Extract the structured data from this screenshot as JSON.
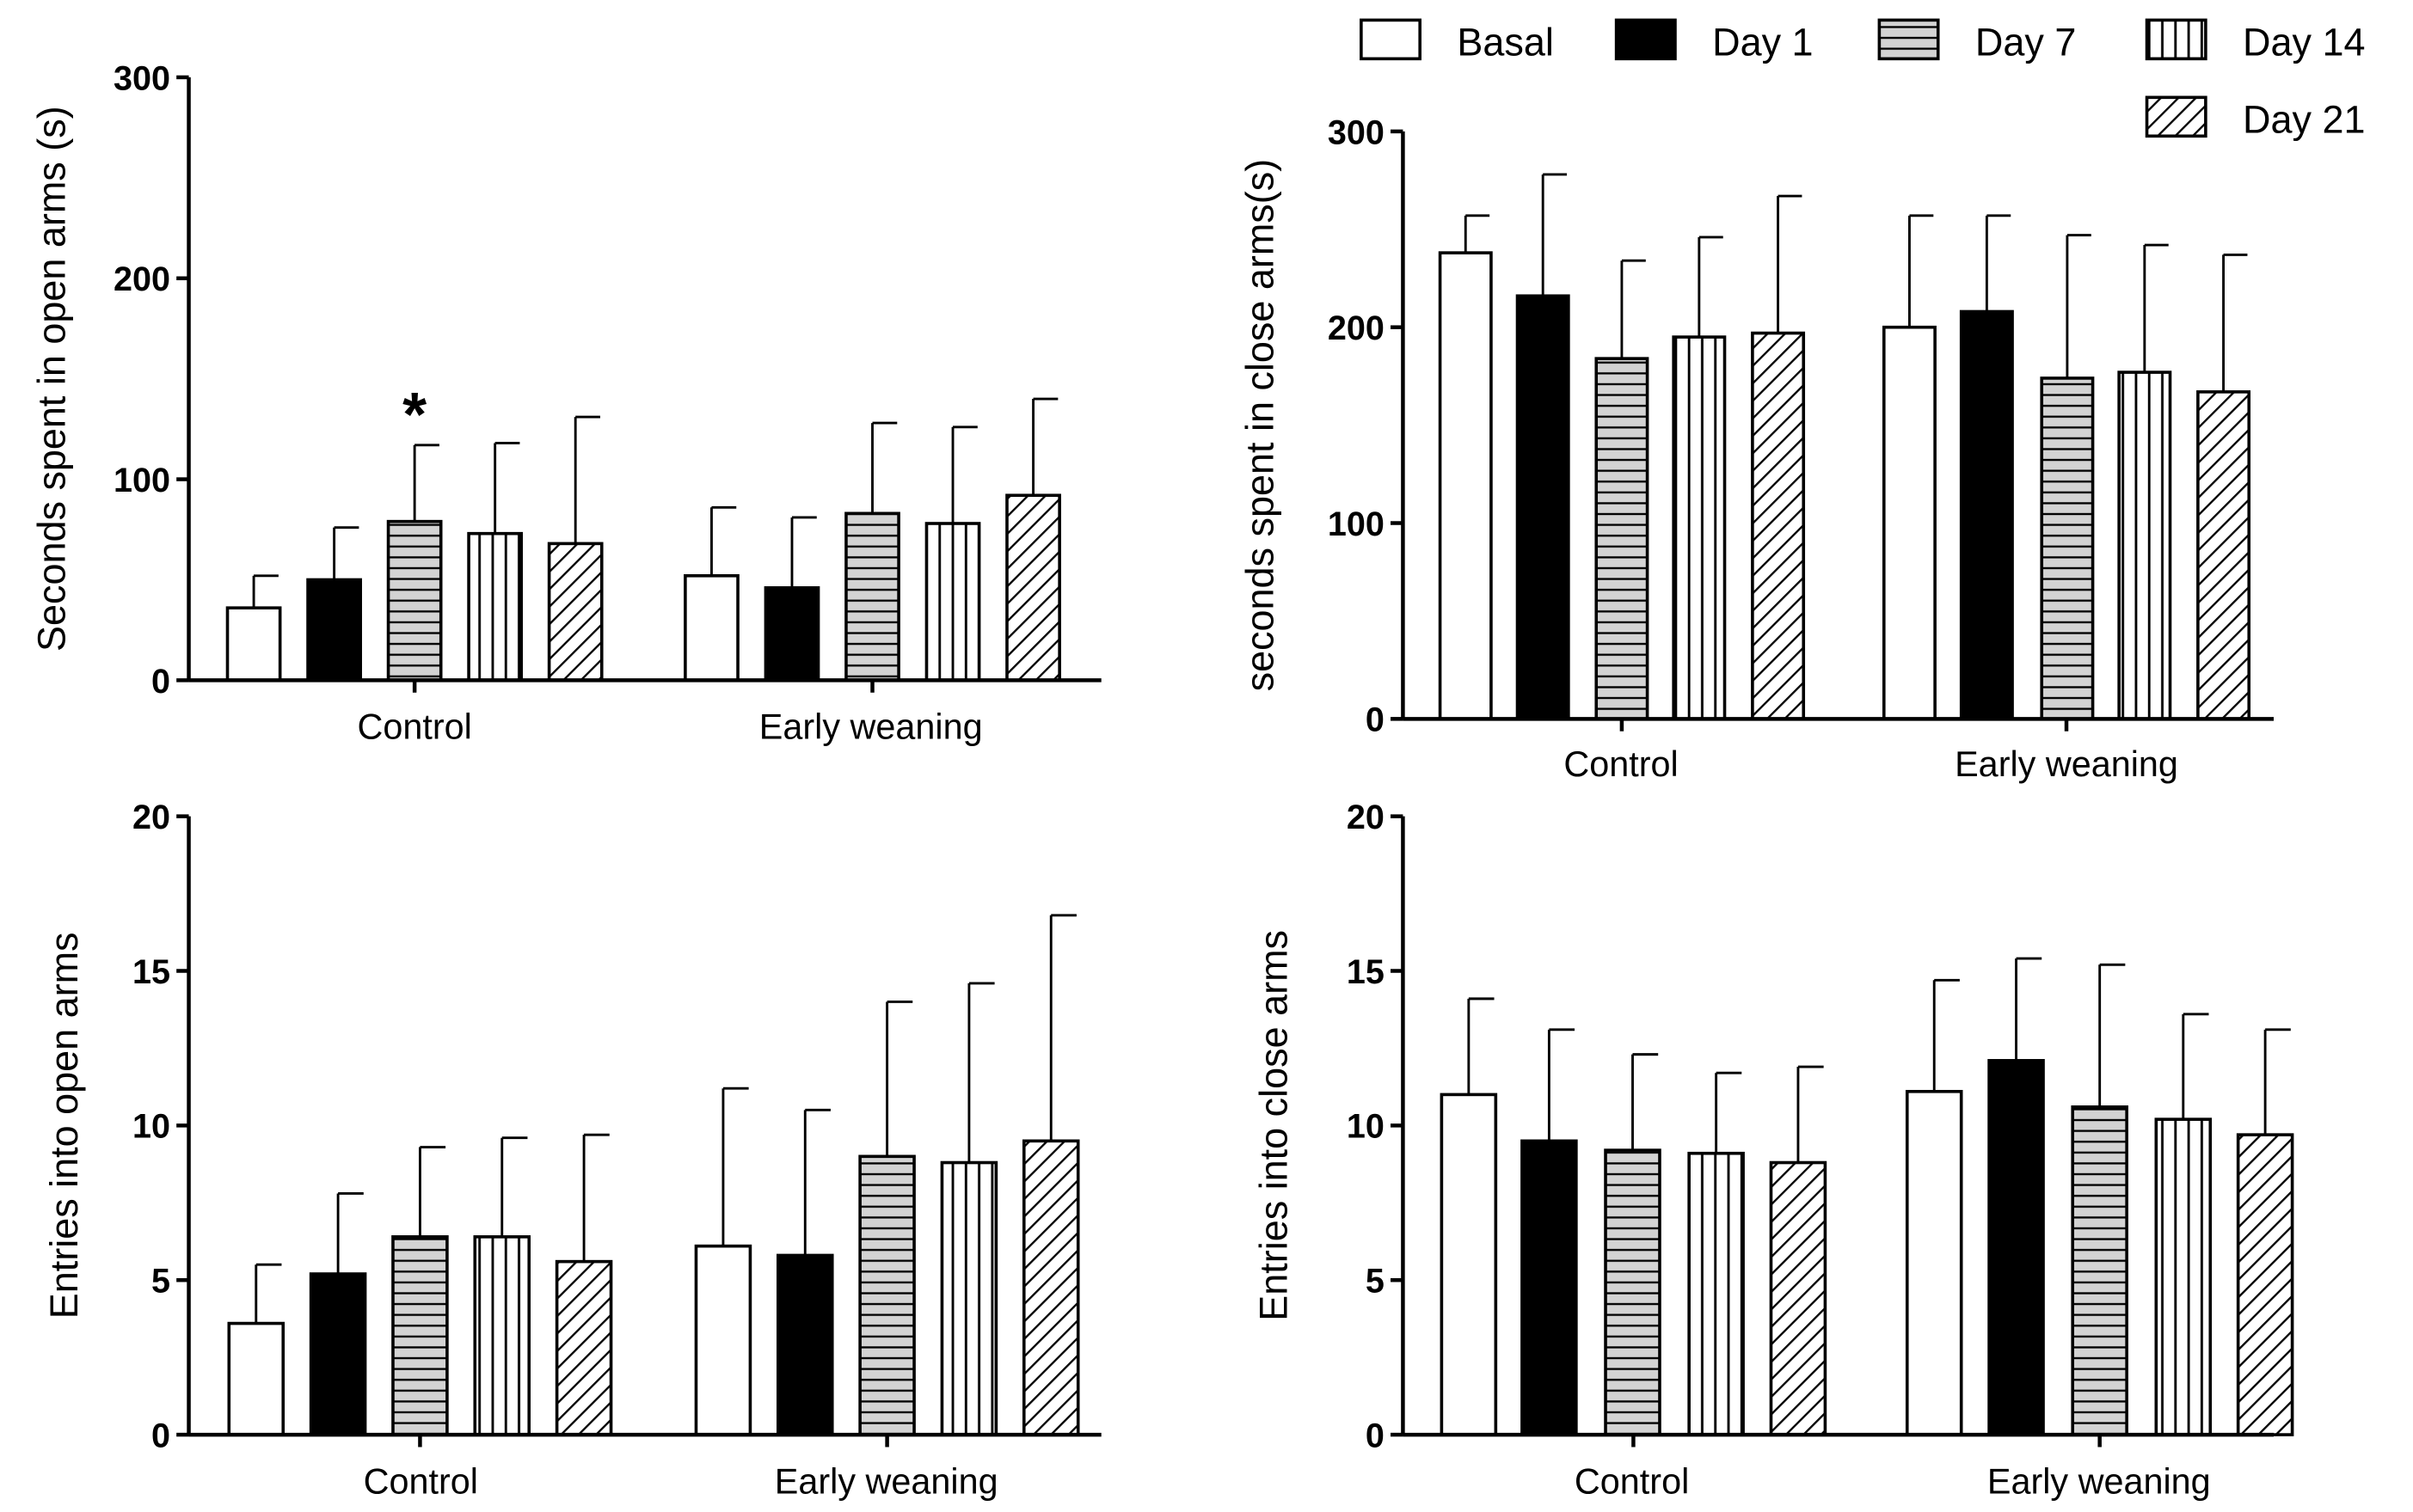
{
  "chart_data": [
    {
      "type": "bar",
      "title": "",
      "ylabel": "Seconds spent in open arms (s)",
      "xlabel": "",
      "ylim": [
        0,
        300
      ],
      "yticks": [
        0,
        100,
        200,
        300
      ],
      "categories": [
        "Control",
        "Early weaning"
      ],
      "series": [
        {
          "name": "Basal",
          "values": [
            36,
            52
          ],
          "error_upper": [
            52,
            86
          ]
        },
        {
          "name": "Day 1",
          "values": [
            50,
            46
          ],
          "error_upper": [
            76,
            81
          ]
        },
        {
          "name": "Day 7",
          "values": [
            79,
            83
          ],
          "error_upper": [
            117,
            128
          ]
        },
        {
          "name": "Day 14",
          "values": [
            73,
            78
          ],
          "error_upper": [
            118,
            126
          ]
        },
        {
          "name": "Day 21",
          "values": [
            68,
            92
          ],
          "error_upper": [
            131,
            140
          ]
        }
      ],
      "annotations": [
        {
          "text": "*",
          "category": "Control",
          "series": "Day 7"
        }
      ]
    },
    {
      "type": "bar",
      "title": "",
      "ylabel": "seconds spent in close arms(s)",
      "xlabel": "",
      "ylim": [
        0,
        300
      ],
      "yticks": [
        0,
        100,
        200,
        300
      ],
      "categories": [
        "Control",
        "Early weaning"
      ],
      "series": [
        {
          "name": "Basal",
          "values": [
            238,
            200
          ],
          "error_upper": [
            257,
            257
          ]
        },
        {
          "name": "Day 1",
          "values": [
            216,
            208
          ],
          "error_upper": [
            278,
            257
          ]
        },
        {
          "name": "Day 7",
          "values": [
            184,
            174
          ],
          "error_upper": [
            234,
            247
          ]
        },
        {
          "name": "Day 14",
          "values": [
            195,
            177
          ],
          "error_upper": [
            246,
            242
          ]
        },
        {
          "name": "Day 21",
          "values": [
            197,
            167
          ],
          "error_upper": [
            267,
            237
          ]
        }
      ],
      "annotations": []
    },
    {
      "type": "bar",
      "title": "",
      "ylabel": "Entries into open arms",
      "xlabel": "",
      "ylim": [
        0,
        20
      ],
      "yticks": [
        0,
        5,
        10,
        15,
        20
      ],
      "categories": [
        "Control",
        "Early weaning"
      ],
      "series": [
        {
          "name": "Basal",
          "values": [
            3.6,
            6.1
          ],
          "error_upper": [
            5.5,
            11.2
          ]
        },
        {
          "name": "Day 1",
          "values": [
            5.2,
            5.8
          ],
          "error_upper": [
            7.8,
            10.5
          ]
        },
        {
          "name": "Day 7",
          "values": [
            6.4,
            9.0
          ],
          "error_upper": [
            9.3,
            14.0
          ]
        },
        {
          "name": "Day 14",
          "values": [
            6.4,
            8.8
          ],
          "error_upper": [
            9.6,
            14.6
          ]
        },
        {
          "name": "Day 21",
          "values": [
            5.6,
            9.5
          ],
          "error_upper": [
            9.7,
            16.8
          ]
        }
      ],
      "annotations": []
    },
    {
      "type": "bar",
      "title": "",
      "ylabel": "Entries into close arms",
      "xlabel": "",
      "ylim": [
        0,
        20
      ],
      "yticks": [
        0,
        5,
        10,
        15,
        20
      ],
      "categories": [
        "Control",
        "Early weaning"
      ],
      "series": [
        {
          "name": "Basal",
          "values": [
            11.0,
            11.1
          ],
          "error_upper": [
            14.1,
            14.7
          ]
        },
        {
          "name": "Day 1",
          "values": [
            9.5,
            12.1
          ],
          "error_upper": [
            13.1,
            15.4
          ]
        },
        {
          "name": "Day 7",
          "values": [
            9.2,
            10.6
          ],
          "error_upper": [
            12.3,
            15.2
          ]
        },
        {
          "name": "Day 14",
          "values": [
            9.1,
            10.2
          ],
          "error_upper": [
            11.7,
            13.6
          ]
        },
        {
          "name": "Day 21",
          "values": [
            8.8,
            9.7
          ],
          "error_upper": [
            11.9,
            13.1
          ]
        }
      ],
      "annotations": []
    }
  ],
  "legend": {
    "placement": "top-right",
    "entries": [
      {
        "label": "Basal",
        "fill": "white"
      },
      {
        "label": "Day 1",
        "fill": "black"
      },
      {
        "label": "Day 7",
        "fill": "gray-horizontal-lines"
      },
      {
        "label": "Day 14",
        "fill": "vertical-lines"
      },
      {
        "label": "Day 21",
        "fill": "diagonal-hatch"
      }
    ]
  },
  "colors": {
    "bar_outline": "#000000",
    "day7_fill": "#d3d3d3",
    "background": "#ffffff"
  }
}
